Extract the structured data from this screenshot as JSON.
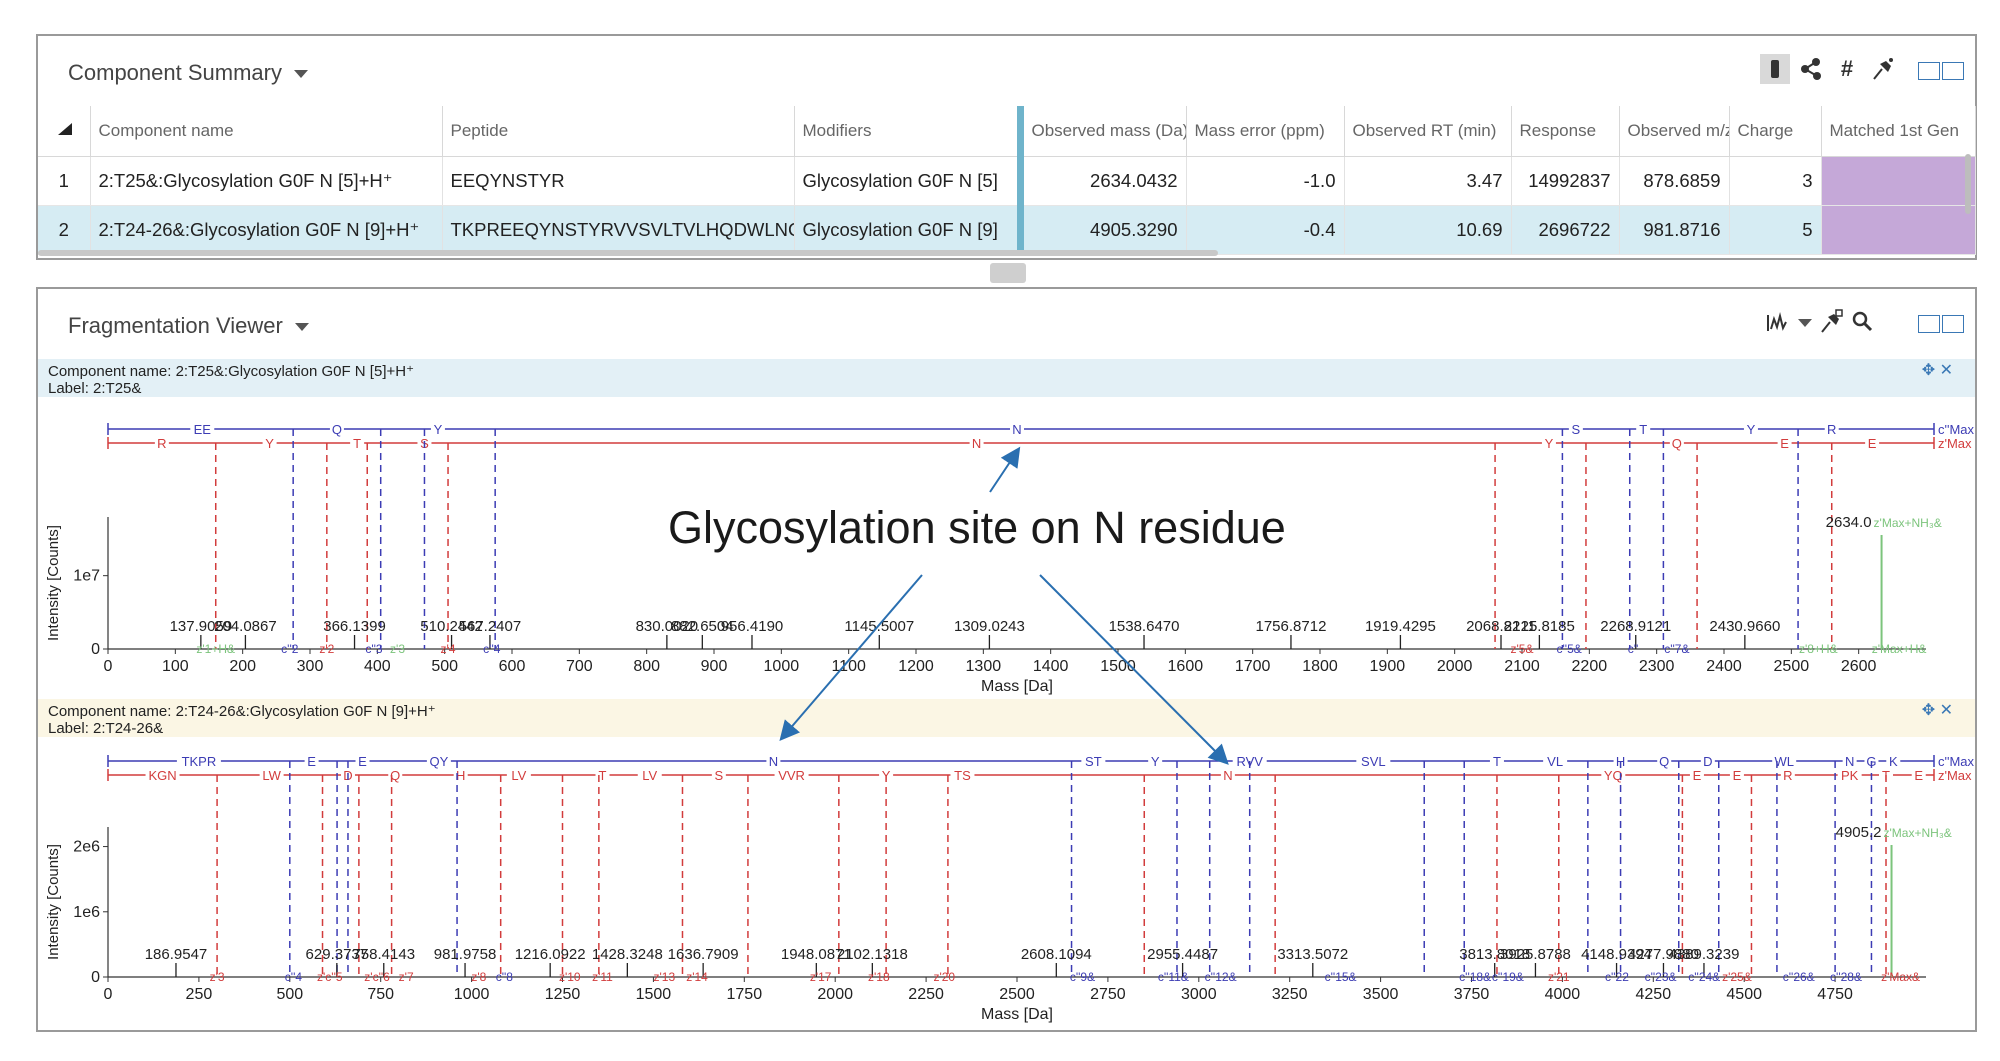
{
  "summary": {
    "title": "Component Summary",
    "columns": [
      "Component name",
      "Peptide",
      "Modifiers",
      "Observed mass (Da)",
      "Mass error (ppm)",
      "Observed RT (min)",
      "Response",
      "Observed m/z",
      "Charge",
      "Matched 1st Gen"
    ],
    "rows": [
      {
        "index": "1",
        "component": "2:T25&:Glycosylation G0F N [5]+H⁺",
        "peptide": "EEQYNSTYR",
        "modifiers": "Glycosylation G0F N [5]",
        "mass": "2634.0432",
        "error": "-1.0",
        "rt": "3.47",
        "response": "14992837",
        "mz": "878.6859",
        "charge": "3",
        "matched": ""
      },
      {
        "index": "2",
        "component": "2:T24-26&:Glycosylation G0F N [9]+H⁺",
        "peptide": "TKPREEQYNSTYRVVSVLTVLHQDWLNGK",
        "modifiers": "Glycosylation G0F N [9]",
        "mass": "4905.3290",
        "error": "-0.4",
        "rt": "10.69",
        "response": "2696722",
        "mz": "981.8716",
        "charge": "5",
        "matched": ""
      }
    ],
    "toolbar_icons": [
      "filter-icon",
      "network-icon",
      "hash-icon",
      "pin-icon"
    ]
  },
  "fragmentation": {
    "title": "Fragmentation Viewer",
    "toolbar_icons": [
      "spectrum-icon",
      "pin-icon",
      "zoom-icon"
    ]
  },
  "annotation": "Glycosylation site on N residue",
  "colors": {
    "blue": "#3c3cb4",
    "red": "#d23c3c",
    "green": "#7cc47c",
    "header1": "#e3f0f6",
    "header2": "#fbf6e4",
    "purple": "#c5a8d8",
    "selected": "#d6ecf3"
  },
  "chart_data": [
    {
      "type": "bar",
      "component_label": "Component name: 2:T25&:Glycosylation G0F N [5]+H⁺",
      "label": "Label: 2:T25&",
      "xlabel": "Mass [Da]",
      "ylabel": "Intensity [Counts]",
      "xlim": [
        0,
        2700
      ],
      "xticks": [
        0,
        100,
        200,
        300,
        400,
        500,
        600,
        700,
        800,
        900,
        1000,
        1100,
        1200,
        1300,
        1400,
        1500,
        1600,
        1700,
        1800,
        1900,
        2000,
        2100,
        2200,
        2300,
        2400,
        2500,
        2600
      ],
      "yticks": [
        {
          "v": 0,
          "label": "0"
        },
        {
          "v": 10000000.0,
          "label": "1e7"
        }
      ],
      "ymax": 18000000.0,
      "peaks": [
        137.9059,
        204.0867,
        366.1399,
        510.2442,
        567.2407,
        830.002,
        882.6504,
        956.419,
        1145.5007,
        1309.0243,
        1538.647,
        1756.8712,
        1919.4295,
        2068.8211,
        2125.8185,
        2268.9121,
        2430.966
      ],
      "peak_labels": [
        "137.9059",
        "204.0867",
        "366.1399",
        "510.2442",
        "567.2407",
        "830.0020",
        "882.6504",
        "956.4190",
        "1145.5007",
        "1309.0243",
        "1538.6470",
        "1756.8712",
        "1919.4295",
        "2068.8211",
        "2125.8185",
        "2268.9121",
        "2430.9660"
      ],
      "precursor": {
        "x": 2634.0,
        "label": "2634.0",
        "annotation": "z'Max+NH₃&"
      },
      "c_ladder": {
        "end_label": "c''Max",
        "residues": [
          {
            "x": 140,
            "label": "EE"
          },
          {
            "x": 340,
            "label": "Q"
          },
          {
            "x": 490,
            "label": "Y"
          },
          {
            "x": 1350,
            "label": "N"
          },
          {
            "x": 2180,
            "label": "S"
          },
          {
            "x": 2280,
            "label": "T"
          },
          {
            "x": 2440,
            "label": "Y"
          },
          {
            "x": 2560,
            "label": "R"
          }
        ]
      },
      "z_ladder": {
        "end_label": "z'Max",
        "residues": [
          {
            "x": 80,
            "label": "R"
          },
          {
            "x": 240,
            "label": "Y"
          },
          {
            "x": 370,
            "label": "T"
          },
          {
            "x": 470,
            "label": "S"
          },
          {
            "x": 1290,
            "label": "N"
          },
          {
            "x": 2140,
            "label": "Y"
          },
          {
            "x": 2330,
            "label": "Q"
          },
          {
            "x": 2490,
            "label": "E"
          },
          {
            "x": 2620,
            "label": "E"
          }
        ]
      },
      "c_lines": [
        275,
        405,
        470,
        575,
        2160,
        2260,
        2310,
        2510
      ],
      "z_lines": [
        160,
        325,
        385,
        505,
        2060,
        2195,
        2360,
        2560
      ],
      "ion_labels": [
        {
          "x": 160,
          "t": "z'1+H&",
          "k": "g"
        },
        {
          "x": 270,
          "t": "c''2",
          "k": "b"
        },
        {
          "x": 325,
          "t": "z'2",
          "k": "r"
        },
        {
          "x": 395,
          "t": "c''3",
          "k": "b"
        },
        {
          "x": 430,
          "t": "z'3",
          "k": "g"
        },
        {
          "x": 505,
          "t": "z'4",
          "k": "r"
        },
        {
          "x": 570,
          "t": "c''4",
          "k": "b"
        },
        {
          "x": 2100,
          "t": "z'5&",
          "k": "r"
        },
        {
          "x": 2170,
          "t": "c''5&",
          "k": "b"
        },
        {
          "x": 2265,
          "t": "c''",
          "k": "b"
        },
        {
          "x": 2330,
          "t": "c''7&",
          "k": "b"
        },
        {
          "x": 2540,
          "t": "z'8+H&",
          "k": "g"
        },
        {
          "x": 2660,
          "t": "z'Max+H&",
          "k": "g"
        }
      ]
    },
    {
      "type": "bar",
      "component_label": "Component name: 2:T24-26&:Glycosylation G0F N [9]+H⁺",
      "label": "Label: 2:T24-26&",
      "xlabel": "Mass [Da]",
      "ylabel": "Intensity [Counts]",
      "xlim": [
        0,
        5000
      ],
      "xticks": [
        0,
        250,
        500,
        750,
        1000,
        1250,
        1500,
        1750,
        2000,
        2250,
        2500,
        2750,
        3000,
        3250,
        3500,
        3750,
        4000,
        4250,
        4500,
        4750
      ],
      "yticks": [
        {
          "v": 0,
          "label": "0"
        },
        {
          "v": 1000000.0,
          "label": "1e6"
        },
        {
          "v": 2000000.0,
          "label": "2e6"
        }
      ],
      "ymax": 2300000.0,
      "peaks": [
        186.9547,
        629.3737,
        758.4143,
        981.9758,
        1216.0922,
        1428.3248,
        1636.7909,
        1948.0871,
        2102.1318,
        2608.1094,
        2955.4487,
        3313.5072,
        3813.8018,
        3925.8788,
        4148.9394,
        4277.988,
        4389.3239
      ],
      "peak_labels": [
        "186.9547",
        "629.3737",
        "758.4143",
        "981.9758",
        "1216.0922",
        "1428.3248",
        "1636.7909",
        "1948.0871",
        "2102.1318",
        "2608.1094",
        "2955.4487",
        "3313.5072",
        "3813.8018",
        "3925.8788",
        "4148.9394",
        "4277.9880",
        "4389.3239"
      ],
      "precursor": {
        "x": 4905.2,
        "label": "4905.2",
        "annotation": "z'Max+NH₃&"
      },
      "c_ladder": {
        "end_label": "c''Max",
        "residues": [
          {
            "x": 250,
            "label": "TKPR"
          },
          {
            "x": 560,
            "label": "E"
          },
          {
            "x": 700,
            "label": "E"
          },
          {
            "x": 910,
            "label": "QY"
          },
          {
            "x": 1830,
            "label": "N"
          },
          {
            "x": 2710,
            "label": "ST"
          },
          {
            "x": 2880,
            "label": "Y"
          },
          {
            "x": 3140,
            "label": "RVV"
          },
          {
            "x": 3480,
            "label": "SVL"
          },
          {
            "x": 3820,
            "label": "T"
          },
          {
            "x": 3980,
            "label": "VL"
          },
          {
            "x": 4160,
            "label": "H"
          },
          {
            "x": 4280,
            "label": "Q"
          },
          {
            "x": 4400,
            "label": "D"
          },
          {
            "x": 4610,
            "label": "WL"
          },
          {
            "x": 4790,
            "label": "N"
          },
          {
            "x": 4850,
            "label": "G"
          },
          {
            "x": 4910,
            "label": "K"
          }
        ]
      },
      "z_ladder": {
        "end_label": "z'Max",
        "residues": [
          {
            "x": 150,
            "label": "KGN"
          },
          {
            "x": 450,
            "label": "LW"
          },
          {
            "x": 660,
            "label": "D"
          },
          {
            "x": 790,
            "label": "Q"
          },
          {
            "x": 970,
            "label": "H"
          },
          {
            "x": 1130,
            "label": "LV"
          },
          {
            "x": 1360,
            "label": "T"
          },
          {
            "x": 1490,
            "label": "LV"
          },
          {
            "x": 1680,
            "label": "S"
          },
          {
            "x": 1880,
            "label": "VVR"
          },
          {
            "x": 2140,
            "label": "Y"
          },
          {
            "x": 2350,
            "label": "TS"
          },
          {
            "x": 3080,
            "label": "N"
          },
          {
            "x": 4140,
            "label": "YQ"
          },
          {
            "x": 4370,
            "label": "E"
          },
          {
            "x": 4480,
            "label": "E"
          },
          {
            "x": 4620,
            "label": "R"
          },
          {
            "x": 4790,
            "label": "PK"
          },
          {
            "x": 4890,
            "label": "T"
          },
          {
            "x": 4980,
            "label": "E"
          }
        ]
      },
      "c_lines": [
        500,
        630,
        660,
        960,
        2650,
        2940,
        3030,
        3140,
        3620,
        3730,
        4070,
        4160,
        4320,
        4430,
        4590,
        4750,
        4850
      ],
      "z_lines": [
        300,
        590,
        690,
        780,
        1080,
        1250,
        1350,
        1580,
        1760,
        2010,
        2140,
        2310,
        2850,
        3210,
        3820,
        3990,
        4330,
        4520,
        4890
      ],
      "ion_labels": [
        {
          "x": 300,
          "t": "z'3",
          "k": "r"
        },
        {
          "x": 510,
          "t": "c''4",
          "k": "b"
        },
        {
          "x": 610,
          "t": "z'c''5",
          "k": "r"
        },
        {
          "x": 740,
          "t": "z'c''6",
          "k": "r"
        },
        {
          "x": 820,
          "t": "z'7",
          "k": "r"
        },
        {
          "x": 1020,
          "t": "z'8",
          "k": "r"
        },
        {
          "x": 1090,
          "t": "c''8",
          "k": "b"
        },
        {
          "x": 1270,
          "t": "z'10",
          "k": "r"
        },
        {
          "x": 1360,
          "t": "z'11",
          "k": "r"
        },
        {
          "x": 1530,
          "t": "z'13",
          "k": "r"
        },
        {
          "x": 1620,
          "t": "z'14",
          "k": "r"
        },
        {
          "x": 1960,
          "t": "z'17",
          "k": "r"
        },
        {
          "x": 2120,
          "t": "z'18",
          "k": "r"
        },
        {
          "x": 2300,
          "t": "z'20",
          "k": "r"
        },
        {
          "x": 2680,
          "t": "c''9&",
          "k": "b"
        },
        {
          "x": 2930,
          "t": "c''11&",
          "k": "b"
        },
        {
          "x": 3060,
          "t": "c''12&",
          "k": "b"
        },
        {
          "x": 3390,
          "t": "c''15&",
          "k": "b"
        },
        {
          "x": 3760,
          "t": "c''18&",
          "k": "b"
        },
        {
          "x": 3850,
          "t": "c''19&",
          "k": "b"
        },
        {
          "x": 3990,
          "t": "z'21",
          "k": "r"
        },
        {
          "x": 4150,
          "t": "c''22",
          "k": "b"
        },
        {
          "x": 4270,
          "t": "c''23&",
          "k": "b"
        },
        {
          "x": 4390,
          "t": "c''24&",
          "k": "b"
        },
        {
          "x": 4480,
          "t": "z'25&",
          "k": "r"
        },
        {
          "x": 4650,
          "t": "c''26&",
          "k": "b"
        },
        {
          "x": 4780,
          "t": "c''28&",
          "k": "b"
        },
        {
          "x": 4930,
          "t": "z'Max&",
          "k": "r"
        }
      ]
    }
  ]
}
